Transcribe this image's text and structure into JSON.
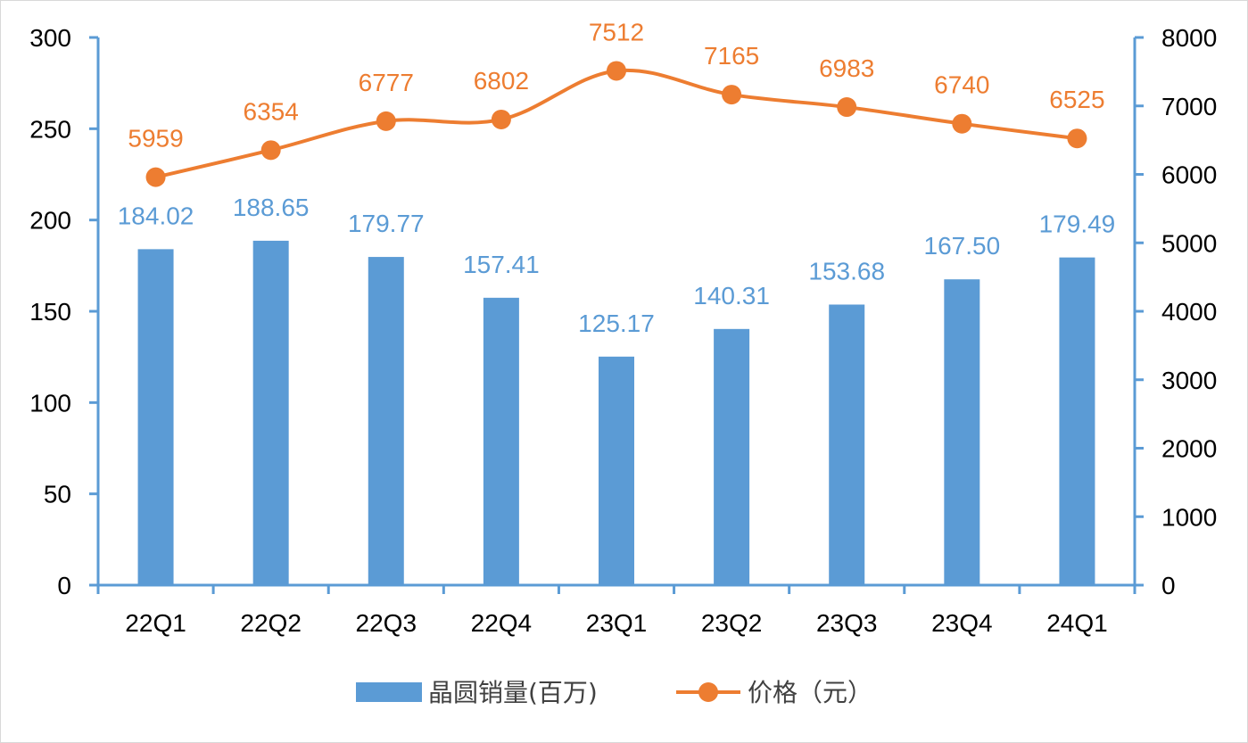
{
  "chart_data": {
    "type": "bar",
    "categories": [
      "22Q1",
      "22Q2",
      "22Q3",
      "22Q4",
      "23Q1",
      "23Q2",
      "23Q3",
      "23Q4",
      "24Q1"
    ],
    "series": [
      {
        "name": "晶圆销量(百万)",
        "type": "bar",
        "axis": "left",
        "values": [
          184.02,
          188.65,
          179.77,
          157.41,
          125.17,
          140.31,
          153.68,
          167.5,
          179.49
        ],
        "labels": [
          "184.02",
          "188.65",
          "179.77",
          "157.41",
          "125.17",
          "140.31",
          "153.68",
          "167.50",
          "179.49"
        ],
        "color": "#5B9BD5"
      },
      {
        "name": "价格（元）",
        "type": "line",
        "axis": "right",
        "values": [
          5959,
          6354,
          6777,
          6802,
          7512,
          7165,
          6983,
          6740,
          6525
        ],
        "labels": [
          "5959",
          "6354",
          "6777",
          "6802",
          "7512",
          "7165",
          "6983",
          "6740",
          "6525"
        ],
        "color": "#ED7D31",
        "smooth": true,
        "markers": "circle"
      }
    ],
    "y_left": {
      "ylim": [
        0,
        300
      ],
      "ticks": [
        0,
        50,
        100,
        150,
        200,
        250,
        300
      ],
      "tick_labels": [
        "0",
        "50",
        "100",
        "150",
        "200",
        "250",
        "300"
      ]
    },
    "y_right": {
      "ylim": [
        0,
        8000
      ],
      "ticks": [
        0,
        1000,
        2000,
        3000,
        4000,
        5000,
        6000,
        7000,
        8000
      ],
      "tick_labels": [
        "0",
        "1000",
        "2000",
        "3000",
        "4000",
        "5000",
        "6000",
        "7000",
        "8000"
      ]
    },
    "axis_color": "#5B9BD5",
    "grid": false,
    "legend_position": "bottom",
    "title": "",
    "xlabel": "",
    "ylabel": ""
  }
}
